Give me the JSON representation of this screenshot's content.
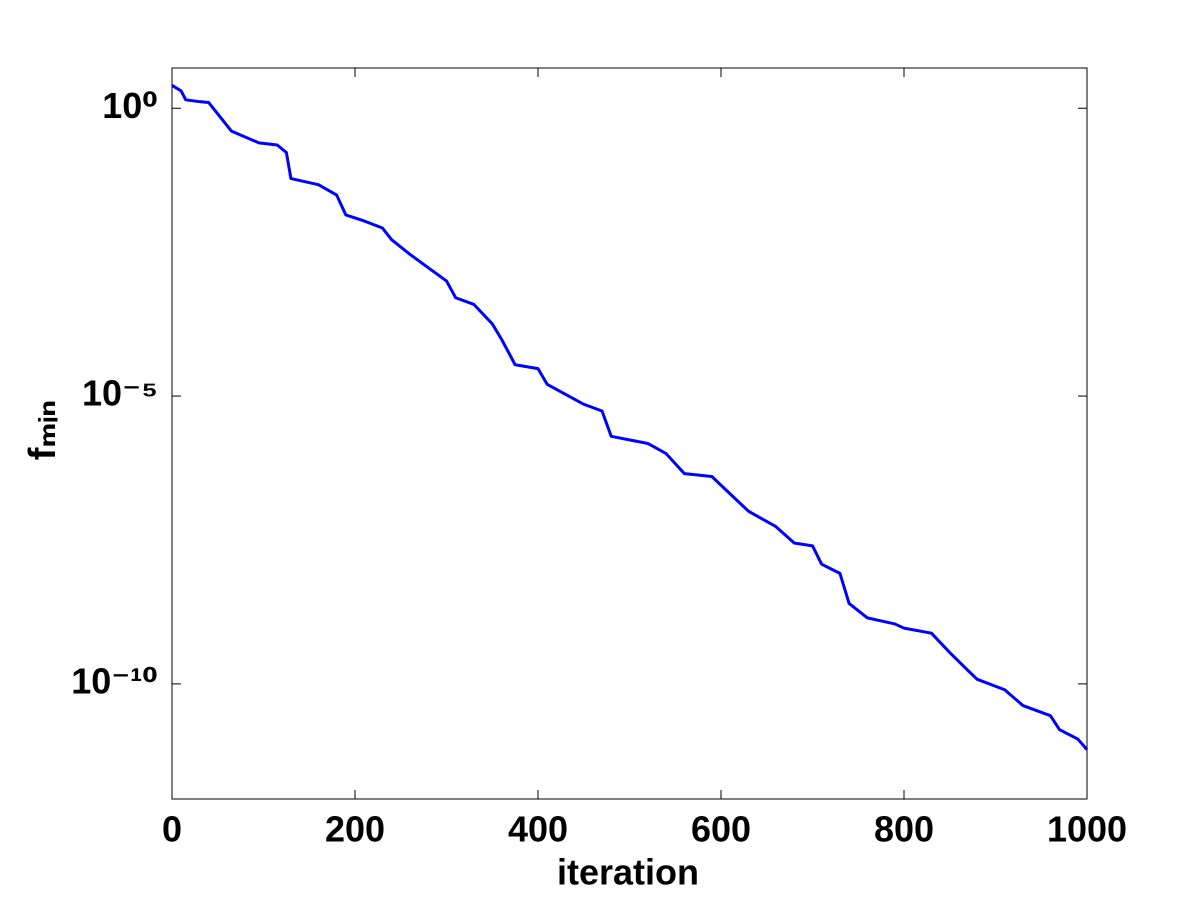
{
  "chart_data": {
    "type": "line",
    "x_label": "iteration",
    "y_label": "fₘᵢₙ",
    "log_y": true,
    "grid": false,
    "xlim": [
      0,
      1000
    ],
    "xticks": [
      0,
      200,
      400,
      600,
      800,
      1000
    ],
    "ylim": [
      1e-12,
      5
    ],
    "yticks": [
      {
        "value": 1,
        "label": "10⁰"
      },
      {
        "value": 1e-05,
        "label": "10⁻⁵"
      },
      {
        "value": 1e-10,
        "label": "10⁻¹⁰"
      }
    ],
    "x": [
      0,
      10,
      15,
      30,
      40,
      65,
      95,
      115,
      125,
      130,
      160,
      180,
      190,
      210,
      230,
      240,
      260,
      280,
      300,
      310,
      330,
      350,
      360,
      375,
      400,
      410,
      450,
      470,
      480,
      520,
      540,
      560,
      590,
      610,
      630,
      660,
      680,
      700,
      710,
      730,
      740,
      760,
      790,
      800,
      830,
      850,
      870,
      880,
      910,
      930,
      960,
      970,
      990,
      1000
    ],
    "series": [
      {
        "color": "#0000ff",
        "values": [
          2.5,
          2.0,
          1.4,
          1.3,
          1.26,
          0.4,
          0.25,
          0.23,
          0.17,
          0.06,
          0.047,
          0.031,
          0.014,
          0.011,
          0.0083,
          0.0052,
          0.0029,
          0.0017,
          0.001,
          0.00051,
          0.00039,
          0.00018,
          9.8e-05,
          3.5e-05,
          3e-05,
          1.6e-05,
          7.2e-06,
          5.5e-06,
          2e-06,
          1.5e-06,
          1e-06,
          4.5e-07,
          4e-07,
          2e-07,
          1e-07,
          5.4e-08,
          2.8e-08,
          2.5e-08,
          1.2e-08,
          8.3e-09,
          2.5e-09,
          1.4e-09,
          1.1e-09,
          9.3e-10,
          7.6e-10,
          3.5e-10,
          1.7e-10,
          1.2e-10,
          7.9e-11,
          4.2e-11,
          2.8e-11,
          1.6e-11,
          1.1e-11,
          7.2e-12
        ]
      }
    ]
  }
}
